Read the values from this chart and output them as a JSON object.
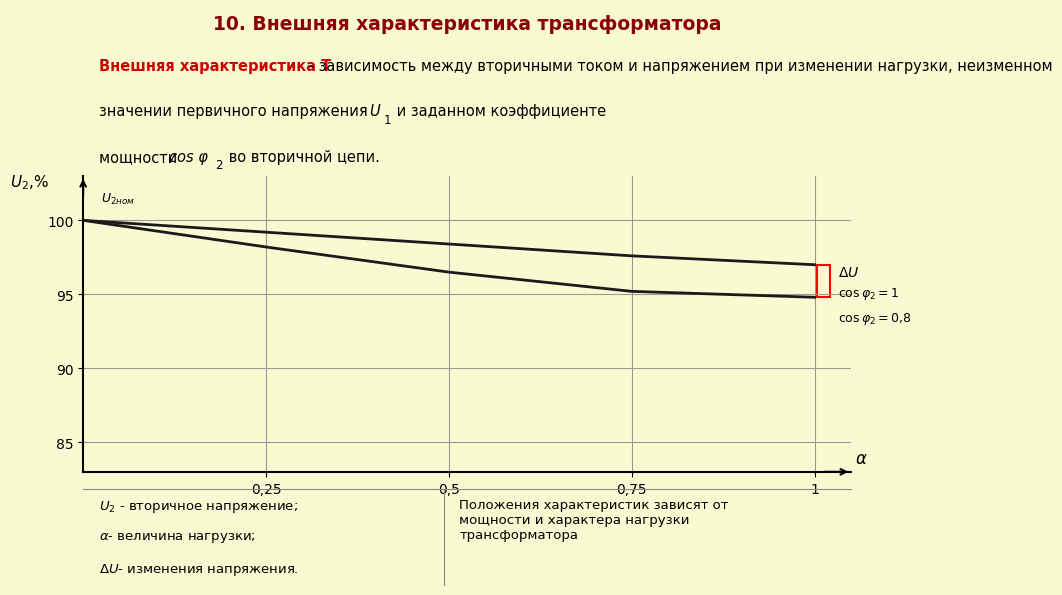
{
  "title": "10. Внешняя характеристика трансформатора",
  "bg_color": "#FAFAD2",
  "title_color": "#8B0000",
  "plot_bg": "#FAFAD2",
  "line1_x": [
    0,
    0.25,
    0.5,
    0.75,
    1.0
  ],
  "line1_y": [
    100,
    99.2,
    98.4,
    97.6,
    97.0
  ],
  "line2_x": [
    0,
    0.25,
    0.5,
    0.75,
    1.0
  ],
  "line2_y": [
    100,
    98.2,
    96.5,
    95.2,
    94.8
  ],
  "xmin": 0,
  "xmax": 1.05,
  "ymin": 83,
  "ymax": 103,
  "yticks": [
    85,
    90,
    95,
    100
  ],
  "xticks": [
    0.25,
    0.5,
    0.75,
    1
  ],
  "line_color": "#1a1a1a",
  "grid_color": "#999999",
  "footer_left1": "U₂ - вторичное напряжение;",
  "footer_left2": "α- величина нагрузки;",
  "footer_left3": "ΔU- изменения напряжения.",
  "footer_right": "Положения характеристик зависят от\nмощности и характера нагрузки\nтрансформатора"
}
